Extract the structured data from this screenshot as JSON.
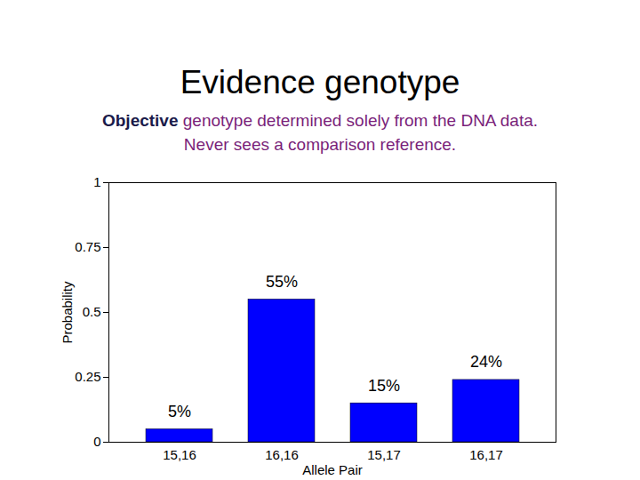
{
  "chart_data": {
    "type": "bar",
    "title": "Evidence genotype",
    "subtitle": [
      "Objective genotype determined solely from the DNA data.",
      "Never sees a comparison reference."
    ],
    "x_label": "Allele Pair",
    "y_label": "Probability",
    "categories": [
      "15,16",
      "16,16",
      "15,17",
      "16,17"
    ],
    "values": [
      0.05,
      0.55,
      0.15,
      0.24
    ],
    "value_labels": [
      "5%",
      "55%",
      "15%",
      "24%"
    ],
    "data_labels": true,
    "color": "#0000ff",
    "ylim": [
      0,
      1
    ],
    "yticks": [
      0,
      0.25,
      0.5,
      0.75,
      1
    ],
    "grid": false
  }
}
